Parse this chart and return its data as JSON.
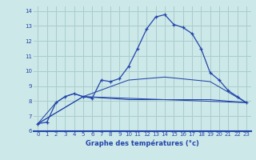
{
  "background_color": "#cce8e8",
  "grid_color": "#aacccc",
  "line_color": "#2244aa",
  "xlabel": "Graphe des températures (°c)",
  "xlabel_color": "#2244aa",
  "xlim": [
    -0.5,
    23.5
  ],
  "ylim": [
    6,
    14.3
  ],
  "xticks": [
    0,
    1,
    2,
    3,
    4,
    5,
    6,
    7,
    8,
    9,
    10,
    11,
    12,
    13,
    14,
    15,
    16,
    17,
    18,
    19,
    20,
    21,
    22,
    23
  ],
  "yticks": [
    6,
    7,
    8,
    9,
    10,
    11,
    12,
    13,
    14
  ],
  "line1_x": [
    0,
    1,
    2,
    3,
    4,
    5,
    6,
    7,
    8,
    9,
    10,
    11,
    12,
    13,
    14,
    15,
    16,
    17,
    18,
    19,
    20,
    21,
    22,
    23
  ],
  "line1_y": [
    6.5,
    6.6,
    7.9,
    8.3,
    8.5,
    8.3,
    8.2,
    9.4,
    9.3,
    9.5,
    10.3,
    11.5,
    12.8,
    13.6,
    13.75,
    13.1,
    12.9,
    12.5,
    11.5,
    9.9,
    9.4,
    8.7,
    8.3,
    7.9
  ],
  "line2_x": [
    0,
    2,
    3,
    4,
    5,
    23
  ],
  "line2_y": [
    6.5,
    7.9,
    8.3,
    8.5,
    8.3,
    7.9
  ],
  "line3_x": [
    0,
    5,
    10,
    14,
    19,
    23
  ],
  "line3_y": [
    6.5,
    8.3,
    9.4,
    9.6,
    9.3,
    7.9
  ],
  "line4_x": [
    0,
    5,
    10,
    14,
    19,
    23
  ],
  "line4_y": [
    6.5,
    8.3,
    8.1,
    8.1,
    8.1,
    7.9
  ],
  "tick_fontsize": 5.0,
  "xlabel_fontsize": 6.0
}
